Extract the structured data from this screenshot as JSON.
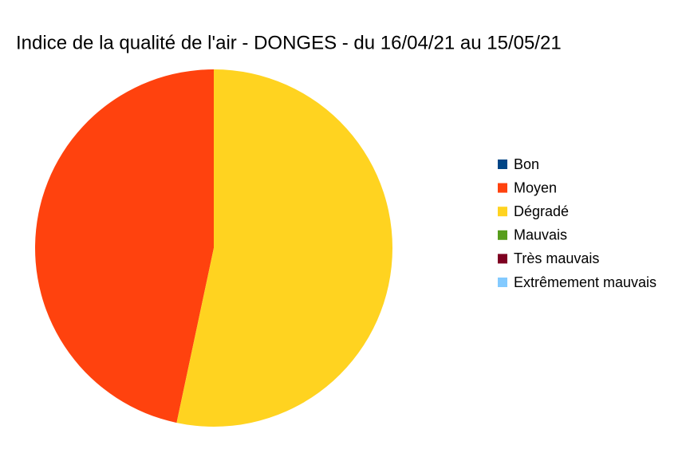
{
  "chart_data": {
    "type": "pie",
    "title": "Indice de la qualité de l'air - DONGES - du 16/04/21 au 15/05/21",
    "categories": [
      "Bon",
      "Moyen",
      "Dégradé",
      "Mauvais",
      "Très mauvais",
      "Extrêmement mauvais"
    ],
    "values": [
      0,
      14,
      16,
      0,
      0,
      0
    ],
    "colors": [
      "#004586",
      "#ff420e",
      "#ffd320",
      "#579d1c",
      "#7e0021",
      "#83caff"
    ],
    "legend": "right"
  }
}
